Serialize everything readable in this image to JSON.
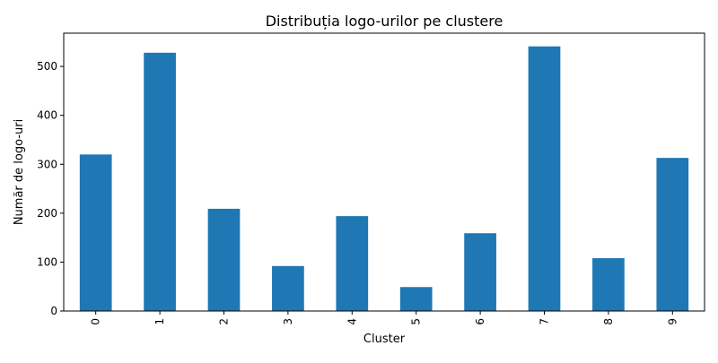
{
  "chart_data": {
    "type": "bar",
    "title": "Distribuția logo-urilor pe clustere",
    "xlabel": "Cluster",
    "ylabel": "Număr de logo-uri",
    "categories": [
      "0",
      "1",
      "2",
      "3",
      "4",
      "5",
      "6",
      "7",
      "8",
      "9"
    ],
    "values": [
      320,
      528,
      209,
      92,
      194,
      49,
      159,
      541,
      108,
      313
    ],
    "ylim": [
      0,
      568
    ],
    "yticks": [
      0,
      100,
      200,
      300,
      400,
      500
    ],
    "grid": false,
    "legend": "none",
    "x_tick_rotation": "vertical",
    "colors": {
      "bar": "#1f77b4",
      "axis": "#000000",
      "background": "#ffffff"
    }
  }
}
